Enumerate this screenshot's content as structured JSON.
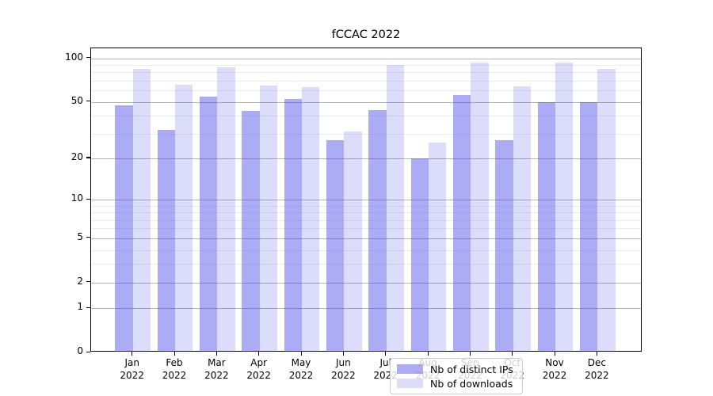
{
  "chart_data": {
    "type": "bar",
    "title": "fCCAC 2022",
    "categories": [
      "Jan",
      "Feb",
      "Mar",
      "Apr",
      "May",
      "Jun",
      "Jul",
      "Aug",
      "Sep",
      "Oct",
      "Nov",
      "Dec"
    ],
    "year_label": "2022",
    "series": [
      {
        "name": "Nb of distinct IPs",
        "color": "rgba(70,70,235,0.45)",
        "values": [
          47,
          32,
          54,
          43,
          52,
          27,
          44,
          20,
          56,
          27,
          50,
          50
        ]
      },
      {
        "name": "Nb of downloads",
        "color": "rgba(70,70,235,0.19)",
        "values": [
          84,
          66,
          87,
          65,
          63,
          31,
          90,
          26,
          94,
          64,
          94,
          85
        ]
      }
    ],
    "xlabel": "",
    "ylabel": "",
    "yscale": "log1p",
    "ylim": [
      0,
      117
    ],
    "y_major_ticks": [
      100,
      50,
      20,
      10,
      5,
      2,
      1,
      0
    ],
    "y_minor_ticks": [
      90,
      80,
      70,
      60,
      40,
      30,
      9,
      8,
      7,
      6,
      4,
      3
    ],
    "grid": true,
    "legend": {
      "position": "lower center"
    },
    "colors": {
      "major_grid": "#b2b2b2",
      "minor_grid": "#ececec",
      "axis": "#000000",
      "bar_dark": "rgba(70,70,235,0.45)",
      "bar_light": "rgba(70,70,235,0.19)"
    }
  }
}
